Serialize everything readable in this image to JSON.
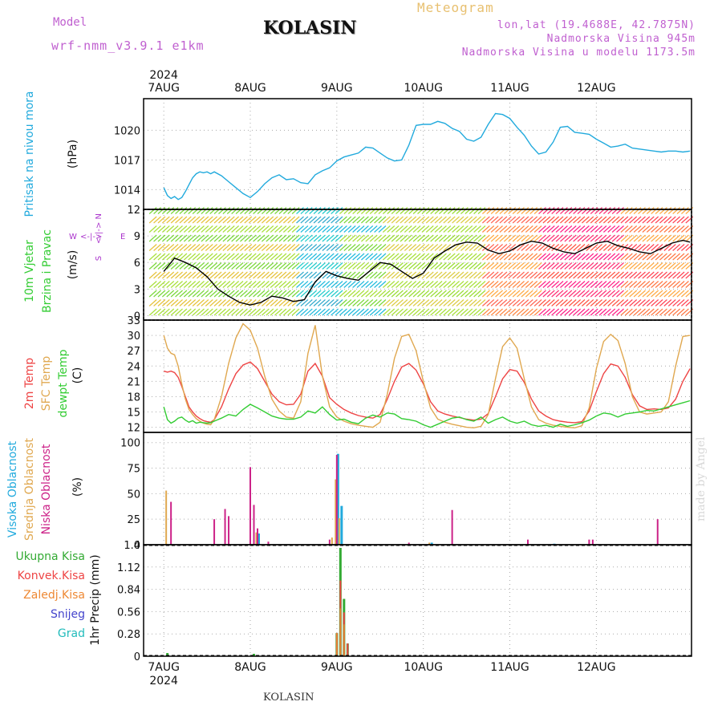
{
  "header": {
    "model_label": "Model",
    "model_name": "wrf-nmm_v3.9.1 e1km",
    "station": "KOLASIN",
    "meteogram": "Meteogram",
    "coords": "lon,lat (19.4688E, 42.7875N)",
    "elevation": "Nadmorska Visina 945m",
    "elevation_model": "Nadmorska Visina u modelu 1173.5m"
  },
  "footer": {
    "station": "KOLASIN",
    "credit": "made by Angel"
  },
  "axis": {
    "year": "2024",
    "days": [
      "7AUG",
      "8AUG",
      "9AUG",
      "10AUG",
      "11AUG",
      "12AUG"
    ]
  },
  "panels": {
    "pressure": {
      "label": "Pritisak na nivou mora",
      "unit": "(hPa)",
      "color": "#22aadd"
    },
    "wind": {
      "label1": "10m Vjetar",
      "label2": "Brzina i Pravac",
      "unit": "(m/s)",
      "compass": {
        "n": "N",
        "s": "S",
        "e": "E",
        "w": "W",
        "arrow_h": "<-|->",
        "arrow_v": "<-|->"
      }
    },
    "temp": {
      "label1": "2m Temp",
      "label2": "SFC Temp",
      "label3": "dewpt Temp",
      "unit": "(C)"
    },
    "cloud": {
      "label1": "Visoka Oblacnost",
      "label2": "Srednja Oblacnost",
      "label3": "Niska Oblacnost",
      "unit": "(%)"
    },
    "precip": {
      "legend": [
        "Ukupna Kisa",
        "Konvek.Kisa",
        "Zaledj.Kisa",
        "Snijeg",
        "Grad"
      ],
      "ylabel": "1hr Precip (mm)"
    }
  },
  "colors": {
    "pressure": "#22aadd",
    "t2m": "#ee4444",
    "tsfc": "#e0a850",
    "dewpt": "#33cc33",
    "cloud_high": "#22aadd",
    "cloud_mid": "#e0a850",
    "cloud_low": "#cc2288",
    "rain": "#33aa33",
    "conv": "#ee4444",
    "frz": "#ee8833",
    "snow": "#4444cc",
    "hail": "#22bbbb",
    "wind_black": "#000000",
    "wind_red": "#ee3333"
  },
  "chart_data": [
    {
      "type": "line",
      "title": "",
      "ylabel": "(hPa)",
      "ylim": [
        1012,
        1023.2
      ],
      "yticks": [
        1014,
        1017,
        1020
      ],
      "series": [
        {
          "name": "Pritisak na nivou mora",
          "x": [
            0,
            1,
            2,
            3,
            4,
            5,
            6,
            7,
            8,
            9,
            10,
            11,
            12,
            13,
            14,
            16,
            18,
            20,
            22,
            24,
            26,
            28,
            30,
            32,
            34,
            36,
            38,
            40,
            42,
            44,
            46,
            48,
            50,
            52,
            54,
            56,
            58,
            60,
            62,
            64,
            66,
            68,
            70,
            72,
            74,
            76,
            78,
            80,
            82,
            84,
            86,
            88,
            90,
            92,
            94,
            96,
            98,
            100,
            102,
            104,
            106,
            108,
            110,
            112,
            114,
            116,
            118,
            120,
            122,
            124,
            126,
            128,
            130,
            132,
            134,
            136,
            138,
            140,
            142,
            144,
            146
          ],
          "values": [
            1014.2,
            1013.4,
            1013.1,
            1013.3,
            1013.0,
            1013.2,
            1013.8,
            1014.5,
            1015.2,
            1015.6,
            1015.8,
            1015.7,
            1015.8,
            1015.6,
            1015.8,
            1015.4,
            1014.8,
            1014.2,
            1013.6,
            1013.2,
            1013.8,
            1014.6,
            1015.2,
            1015.5,
            1015.0,
            1015.1,
            1014.7,
            1014.6,
            1015.5,
            1015.9,
            1016.2,
            1016.9,
            1017.3,
            1017.5,
            1017.7,
            1018.3,
            1018.2,
            1017.7,
            1017.2,
            1016.9,
            1017.0,
            1018.5,
            1020.5,
            1020.6,
            1020.6,
            1020.9,
            1020.7,
            1020.2,
            1019.9,
            1019.1,
            1018.9,
            1019.3,
            1020.6,
            1021.7,
            1021.6,
            1021.2,
            1020.3,
            1019.5,
            1018.4,
            1017.6,
            1017.8,
            1018.8,
            1020.3,
            1020.4,
            1019.8,
            1019.7,
            1019.6,
            1019.1,
            1018.7,
            1018.3,
            1018.4,
            1018.6,
            1018.2,
            1018.1,
            1018.0,
            1017.9,
            1017.8,
            1017.9,
            1017.9,
            1017.8,
            1017.9
          ]
        }
      ]
    },
    {
      "type": "line",
      "title": "",
      "ylabel": "(m/s)",
      "ylim": [
        -0.5,
        12
      ],
      "yticks": [
        0,
        3,
        6,
        9,
        12
      ],
      "series": [
        {
          "name": "10m Vjetar",
          "x": [
            0,
            3,
            6,
            9,
            12,
            15,
            18,
            21,
            24,
            27,
            30,
            33,
            36,
            39,
            42,
            45,
            48,
            51,
            54,
            57,
            60,
            63,
            66,
            69,
            72,
            75,
            78,
            81,
            84,
            87,
            90,
            93,
            96,
            99,
            102,
            105,
            108,
            111,
            114,
            117,
            120,
            123,
            126,
            129,
            132,
            135,
            138,
            141,
            144,
            146
          ],
          "values": [
            5.0,
            6.5,
            6.0,
            5.4,
            4.4,
            3.0,
            2.2,
            1.5,
            1.2,
            1.5,
            2.2,
            2.0,
            1.6,
            1.8,
            3.8,
            5.0,
            4.5,
            4.2,
            4.0,
            5.0,
            6.0,
            5.8,
            5.0,
            4.2,
            4.8,
            6.5,
            7.3,
            8.0,
            8.3,
            8.2,
            7.4,
            7.0,
            7.3,
            8.0,
            8.4,
            8.2,
            7.6,
            7.2,
            7.0,
            7.6,
            8.2,
            8.4,
            7.9,
            7.6,
            7.2,
            7.0,
            7.6,
            8.2,
            8.5,
            8.3
          ]
        }
      ]
    },
    {
      "type": "line",
      "title": "",
      "ylabel": "(C)",
      "ylim": [
        11,
        33
      ],
      "yticks": [
        12,
        15,
        18,
        21,
        24,
        27,
        30,
        33
      ],
      "series": [
        {
          "name": "2m Temp",
          "x": [
            0,
            1,
            2,
            3,
            4,
            5,
            6,
            7,
            8,
            9,
            10,
            11,
            12,
            13,
            14,
            16,
            18,
            20,
            22,
            24,
            26,
            28,
            30,
            32,
            34,
            36,
            38,
            40,
            42,
            44,
            46,
            48,
            50,
            52,
            54,
            56,
            58,
            60,
            62,
            64,
            66,
            68,
            70,
            72,
            74,
            76,
            78,
            80,
            82,
            84,
            86,
            88,
            90,
            92,
            94,
            96,
            98,
            100,
            102,
            104,
            106,
            108,
            110,
            112,
            114,
            116,
            118,
            120,
            122,
            124,
            126,
            128,
            130,
            132,
            134,
            136,
            138,
            140,
            142,
            144,
            146
          ],
          "values": [
            23.0,
            22.8,
            23.0,
            22.7,
            21.8,
            20.0,
            18.0,
            16.0,
            15.0,
            14.2,
            13.7,
            13.3,
            13.1,
            13.0,
            13.5,
            16.0,
            19.5,
            22.5,
            24.2,
            24.8,
            23.5,
            21.0,
            18.5,
            17.0,
            16.4,
            16.5,
            18.5,
            23.0,
            24.5,
            22.0,
            17.8,
            16.5,
            15.5,
            14.8,
            14.3,
            14.0,
            13.8,
            14.5,
            17.5,
            21.0,
            23.8,
            24.5,
            23.2,
            20.5,
            17.0,
            15.2,
            14.6,
            14.2,
            13.9,
            13.6,
            13.4,
            13.6,
            14.7,
            18.0,
            21.5,
            23.3,
            23.0,
            20.8,
            17.5,
            15.2,
            14.2,
            13.5,
            13.2,
            13.0,
            12.9,
            13.1,
            15.2,
            19.0,
            22.5,
            24.4,
            24.0,
            21.8,
            18.4,
            16.2,
            15.5,
            15.6,
            15.5,
            15.8,
            17.5,
            21.0,
            23.5
          ]
        },
        {
          "name": "SFC Temp",
          "x": [
            0,
            1,
            2,
            3,
            4,
            5,
            6,
            7,
            8,
            9,
            10,
            11,
            12,
            13,
            14,
            16,
            18,
            20,
            22,
            24,
            26,
            28,
            30,
            32,
            34,
            36,
            38,
            40,
            42,
            44,
            46,
            48,
            50,
            52,
            54,
            56,
            58,
            60,
            62,
            64,
            66,
            68,
            70,
            72,
            74,
            76,
            78,
            80,
            82,
            84,
            86,
            88,
            90,
            92,
            94,
            96,
            98,
            100,
            102,
            104,
            106,
            108,
            110,
            112,
            114,
            116,
            118,
            120,
            122,
            124,
            126,
            128,
            130,
            132,
            134,
            136,
            138,
            140,
            142,
            144,
            146
          ],
          "values": [
            30.0,
            27.5,
            26.5,
            26.2,
            24.0,
            20.5,
            17.5,
            15.5,
            14.5,
            13.7,
            13.2,
            12.8,
            12.6,
            12.5,
            13.5,
            18.0,
            24.5,
            29.5,
            32.3,
            31.0,
            27.5,
            22.0,
            17.5,
            15.2,
            14.0,
            13.8,
            17.0,
            26.5,
            32.0,
            22.0,
            16.0,
            14.0,
            13.2,
            12.7,
            12.4,
            12.2,
            12.0,
            13.0,
            18.5,
            25.5,
            29.8,
            30.2,
            27.0,
            21.0,
            15.8,
            13.6,
            13.0,
            12.6,
            12.3,
            12.0,
            11.9,
            12.2,
            14.5,
            21.5,
            27.8,
            29.5,
            27.5,
            21.5,
            16.0,
            13.5,
            12.8,
            12.4,
            12.2,
            12.0,
            11.9,
            12.3,
            15.8,
            23.5,
            28.8,
            30.2,
            29.0,
            24.5,
            18.0,
            15.0,
            14.6,
            14.8,
            15.0,
            17.0,
            24.0,
            29.8,
            30.0
          ]
        },
        {
          "name": "dewpt Temp",
          "x": [
            0,
            1,
            2,
            3,
            4,
            5,
            6,
            7,
            8,
            9,
            10,
            11,
            12,
            13,
            14,
            16,
            18,
            20,
            22,
            24,
            26,
            28,
            30,
            32,
            34,
            36,
            38,
            40,
            42,
            44,
            46,
            48,
            50,
            52,
            54,
            56,
            58,
            60,
            62,
            64,
            66,
            68,
            70,
            72,
            74,
            76,
            78,
            80,
            82,
            84,
            86,
            88,
            90,
            92,
            94,
            96,
            98,
            100,
            102,
            104,
            106,
            108,
            110,
            112,
            114,
            116,
            118,
            120,
            122,
            124,
            126,
            128,
            130,
            132,
            134,
            136,
            138,
            140,
            142,
            144,
            146
          ],
          "values": [
            16.0,
            13.5,
            12.8,
            13.2,
            13.8,
            14.0,
            13.4,
            13.0,
            13.3,
            12.8,
            13.0,
            12.9,
            12.8,
            12.9,
            13.2,
            13.8,
            14.5,
            14.2,
            15.5,
            16.5,
            15.8,
            15.0,
            14.2,
            13.8,
            13.6,
            13.6,
            14.0,
            15.2,
            14.8,
            16.0,
            14.5,
            13.4,
            13.6,
            13.0,
            12.7,
            13.8,
            14.4,
            14.0,
            14.8,
            14.6,
            13.7,
            13.5,
            13.2,
            12.5,
            12.0,
            12.6,
            13.2,
            13.8,
            14.0,
            13.5,
            13.2,
            14.0,
            12.8,
            13.5,
            14.0,
            13.2,
            12.8,
            13.2,
            12.5,
            12.2,
            12.4,
            12.0,
            12.6,
            12.2,
            12.5,
            12.9,
            13.4,
            14.2,
            14.8,
            14.6,
            14.0,
            14.6,
            14.8,
            15.0,
            15.3,
            15.2,
            15.6,
            16.0,
            16.4,
            16.8,
            17.2
          ]
        }
      ]
    },
    {
      "type": "bar",
      "title": "",
      "ylabel": "(%)",
      "ylim": [
        0,
        110
      ],
      "yticks": [
        0,
        25,
        50,
        75,
        100
      ],
      "series": [
        {
          "name": "Visoka Oblacnost",
          "x": [
            26,
            48,
            49,
            74,
            108
          ],
          "values": [
            11,
            89,
            38,
            2,
            1
          ]
        },
        {
          "name": "Srednja Oblacnost",
          "x": [
            1,
            26,
            47,
            48,
            49,
            74
          ],
          "values": [
            53,
            12,
            7,
            64,
            26,
            2
          ]
        },
        {
          "name": "Niska Oblacnost",
          "x": [
            2,
            14,
            17,
            18,
            24,
            25,
            26,
            29,
            46,
            48,
            68,
            80,
            101,
            118,
            119,
            137
          ],
          "values": [
            42,
            25,
            35,
            28,
            76,
            39,
            16,
            3,
            5,
            88,
            2,
            34,
            5,
            5,
            5,
            25
          ]
        }
      ]
    },
    {
      "type": "bar",
      "title": "",
      "ylabel": "1hr Precip (mm)",
      "ylim": [
        0,
        1.4
      ],
      "yticks": [
        0,
        0.28,
        0.56,
        0.84,
        1.12,
        1.4
      ],
      "series": [
        {
          "name": "Ukupna Kisa",
          "x": [
            1,
            25,
            48,
            49,
            50,
            51
          ],
          "values": [
            0.04,
            0.03,
            0.29,
            1.36,
            0.72,
            0.16
          ]
        },
        {
          "name": "Konvek.Kisa",
          "x": [
            48,
            49,
            50,
            51
          ],
          "values": [
            0.29,
            0.95,
            0.55,
            0.16
          ]
        },
        {
          "name": "Zaledj.Kisa",
          "x": [
            48,
            49,
            50
          ],
          "values": [
            0.29,
            0.6,
            0.4
          ]
        }
      ]
    }
  ]
}
